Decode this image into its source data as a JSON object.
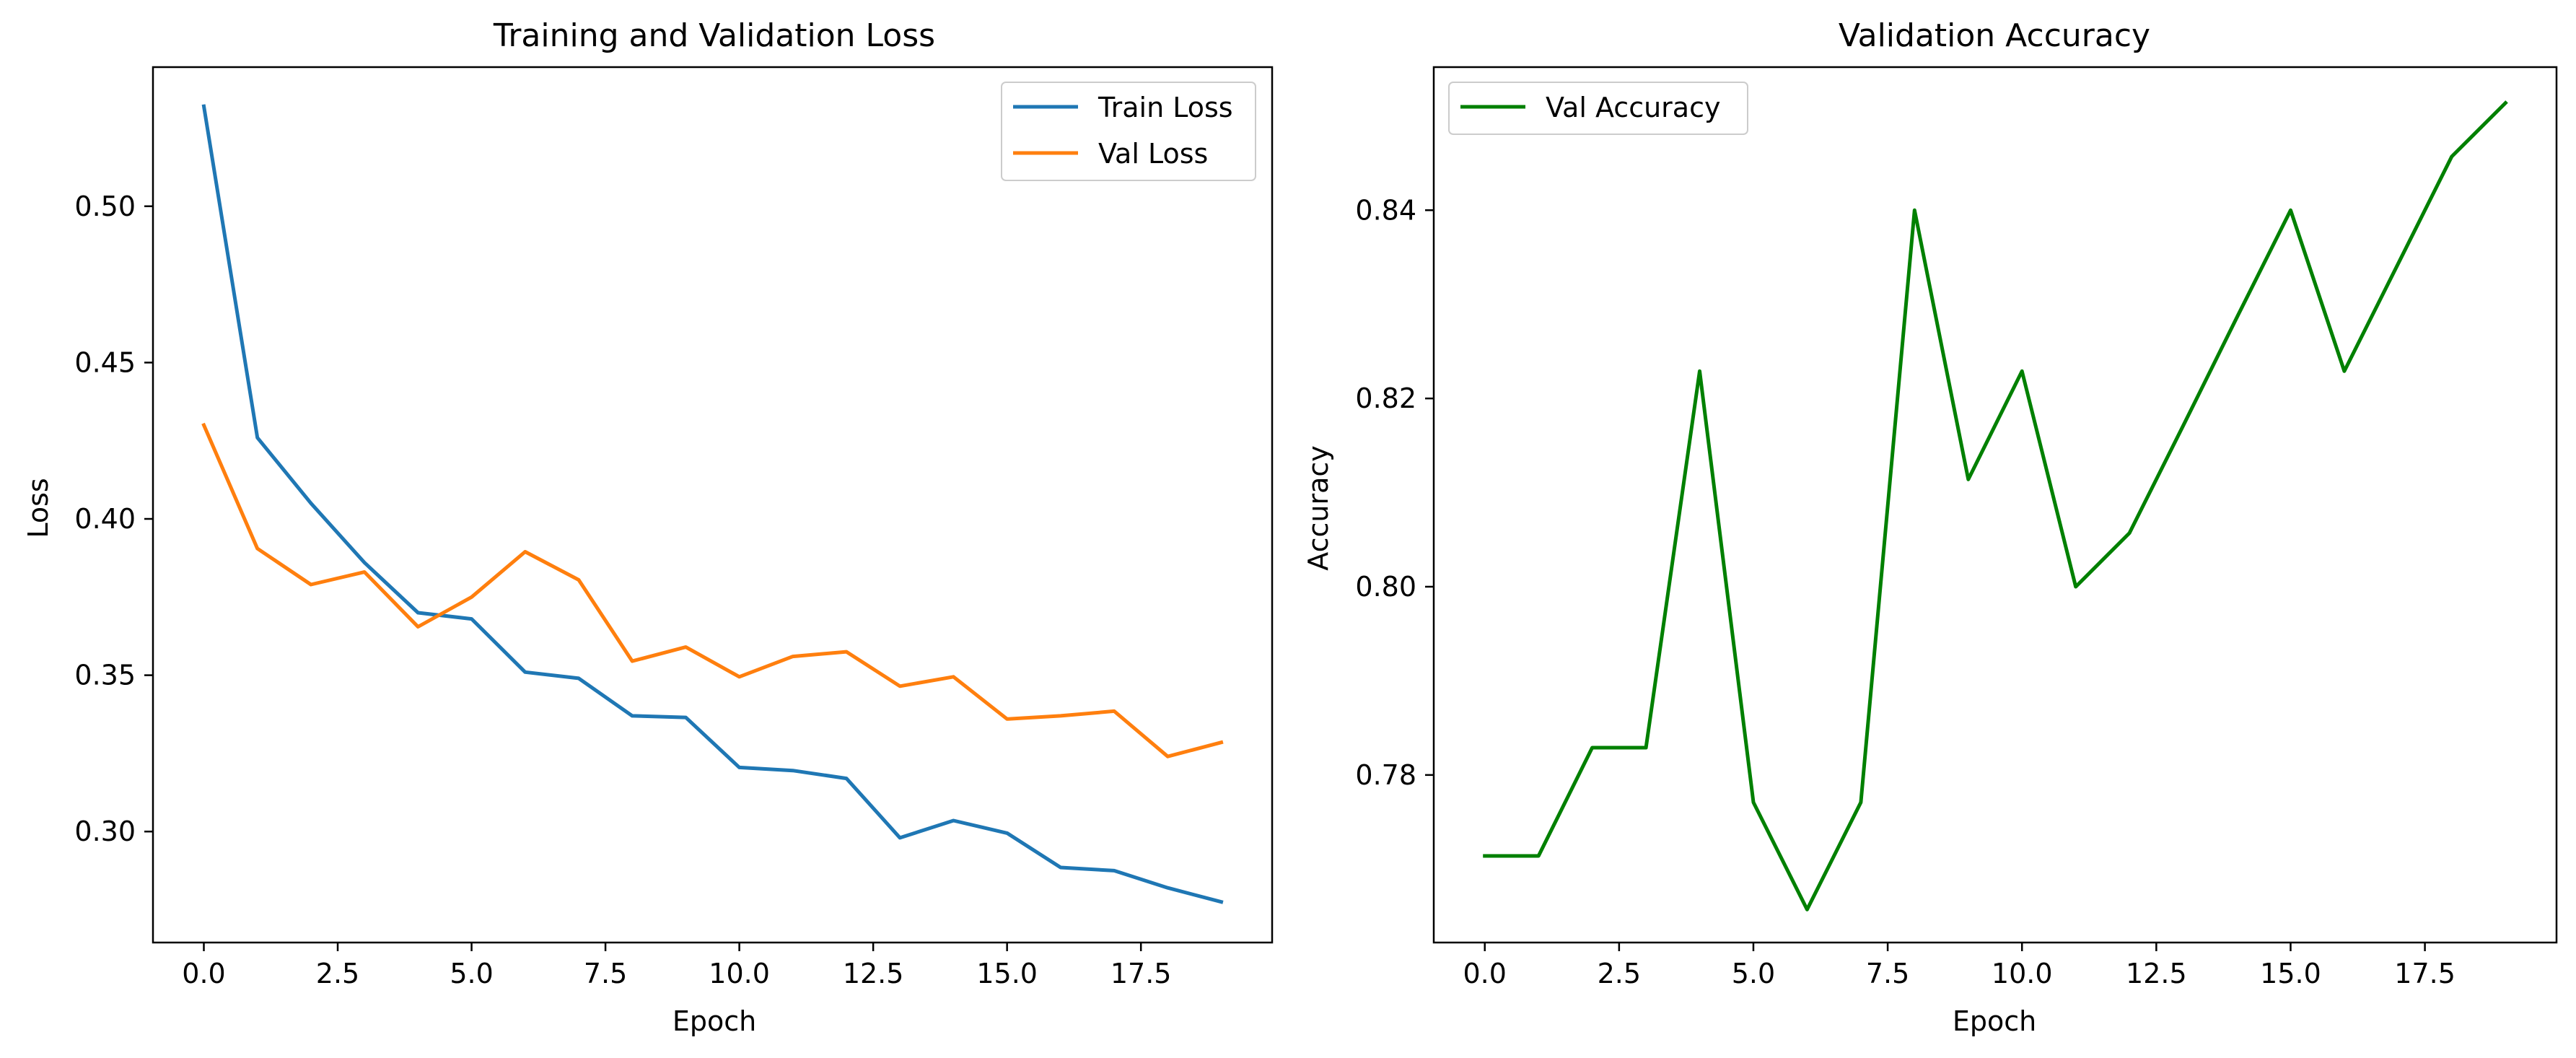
{
  "chart_data": [
    {
      "type": "line",
      "title": "Training and Validation Loss",
      "xlabel": "Epoch",
      "ylabel": "Loss",
      "xlim": [
        -0.95,
        19.95
      ],
      "ylim": [
        0.2645,
        0.5445
      ],
      "grid": false,
      "legend_position": "upper right",
      "x": [
        0,
        1,
        2,
        3,
        4,
        5,
        6,
        7,
        8,
        9,
        10,
        11,
        12,
        13,
        14,
        15,
        16,
        17,
        18,
        19
      ],
      "xticks": [
        0,
        2.5,
        5,
        7.5,
        10,
        12.5,
        15,
        17.5
      ],
      "xtick_labels": [
        "0.0",
        "2.5",
        "5.0",
        "7.5",
        "10.0",
        "12.5",
        "15.0",
        "17.5"
      ],
      "yticks": [
        0.3,
        0.35,
        0.4,
        0.45,
        0.5
      ],
      "ytick_labels": [
        "0.30",
        "0.35",
        "0.40",
        "0.45",
        "0.50"
      ],
      "series": [
        {
          "name": "Train Loss",
          "color": "#1f77b4",
          "values": [
            0.532,
            0.426,
            0.405,
            0.386,
            0.37,
            0.368,
            0.351,
            0.349,
            0.337,
            0.3365,
            0.3205,
            0.3195,
            0.317,
            0.298,
            0.3035,
            0.2995,
            0.2885,
            0.2875,
            0.282,
            0.2775
          ]
        },
        {
          "name": "Val Loss",
          "color": "#ff7f0e",
          "values": [
            0.43,
            0.3905,
            0.379,
            0.383,
            0.3655,
            0.375,
            0.3895,
            0.3805,
            0.3545,
            0.359,
            0.3495,
            0.356,
            0.3575,
            0.3465,
            0.3495,
            0.336,
            0.337,
            0.3385,
            0.324,
            0.3285
          ]
        }
      ]
    },
    {
      "type": "line",
      "title": "Validation Accuracy",
      "xlabel": "Epoch",
      "ylabel": "Accuracy",
      "xlim": [
        -0.95,
        19.95
      ],
      "ylim": [
        0.7622,
        0.8552
      ],
      "grid": false,
      "legend_position": "upper left",
      "x": [
        0,
        1,
        2,
        3,
        4,
        5,
        6,
        7,
        8,
        9,
        10,
        11,
        12,
        13,
        14,
        15,
        16,
        17,
        18,
        19
      ],
      "xticks": [
        0,
        2.5,
        5,
        7.5,
        10,
        12.5,
        15,
        17.5
      ],
      "xtick_labels": [
        "0.0",
        "2.5",
        "5.0",
        "7.5",
        "10.0",
        "12.5",
        "15.0",
        "17.5"
      ],
      "yticks": [
        0.78,
        0.8,
        0.82,
        0.84
      ],
      "ytick_labels": [
        "0.78",
        "0.80",
        "0.82",
        "0.84"
      ],
      "series": [
        {
          "name": "Val Accuracy",
          "color": "#008000",
          "values": [
            0.7714,
            0.7714,
            0.7829,
            0.7829,
            0.8229,
            0.7771,
            0.7657,
            0.7771,
            0.84,
            0.8114,
            0.8229,
            0.8,
            0.8057,
            0.8171,
            0.8286,
            0.84,
            0.8229,
            0.8343,
            0.8457,
            0.8514
          ]
        }
      ]
    }
  ]
}
